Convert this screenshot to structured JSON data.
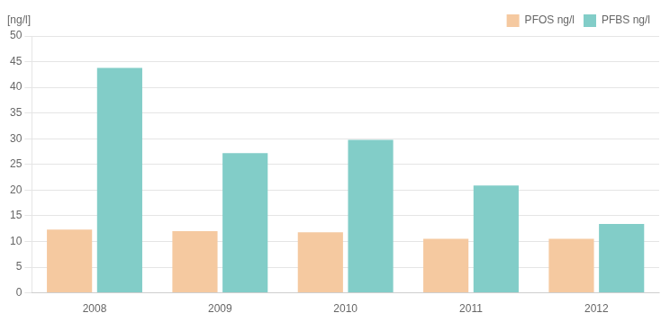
{
  "chart_data": {
    "type": "bar",
    "categories": [
      "2008",
      "2009",
      "2010",
      "2011",
      "2012"
    ],
    "y_label": "[ng/l]",
    "series": [
      {
        "name": "PFOS ng/l",
        "color": "#f5c9a0",
        "values": [
          12.3,
          12.0,
          11.8,
          10.5,
          10.5
        ]
      },
      {
        "name": "PFBS ng/l",
        "color": "#82cdc8",
        "values": [
          43.8,
          27.2,
          29.8,
          20.9,
          13.4
        ]
      }
    ],
    "ylim": [
      0,
      50
    ],
    "yticks": [
      0,
      5,
      10,
      15,
      20,
      25,
      30,
      35,
      40,
      45,
      50
    ],
    "grid": true,
    "legend": "upper right"
  }
}
